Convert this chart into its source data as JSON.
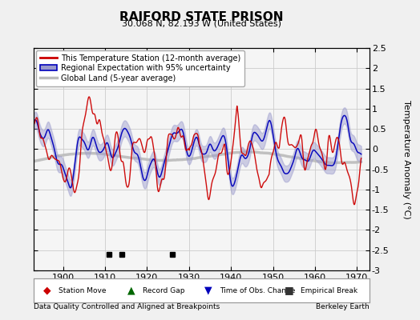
{
  "title": "RAIFORD STATE PRISON",
  "subtitle": "30.068 N, 82.193 W (United States)",
  "ylabel": "Temperature Anomaly (°C)",
  "xlabel_footer": "Data Quality Controlled and Aligned at Breakpoints",
  "footer_right": "Berkeley Earth",
  "ylim": [
    -3.0,
    2.5
  ],
  "xlim": [
    1893,
    1973
  ],
  "xticks": [
    1900,
    1910,
    1920,
    1930,
    1940,
    1950,
    1960,
    1970
  ],
  "yticks": [
    -3,
    -2.5,
    -2,
    -1.5,
    -1,
    -0.5,
    0,
    0.5,
    1,
    1.5,
    2,
    2.5
  ],
  "bg_color": "#f0f0f0",
  "plot_bg_color": "#f5f5f5",
  "grid_color": "#cccccc",
  "red_color": "#cc0000",
  "blue_color": "#0000bb",
  "blue_fill_color": "#9999cc",
  "gray_color": "#bbbbbb",
  "empirical_break_years": [
    1911,
    1914,
    1926
  ],
  "seed": 42
}
